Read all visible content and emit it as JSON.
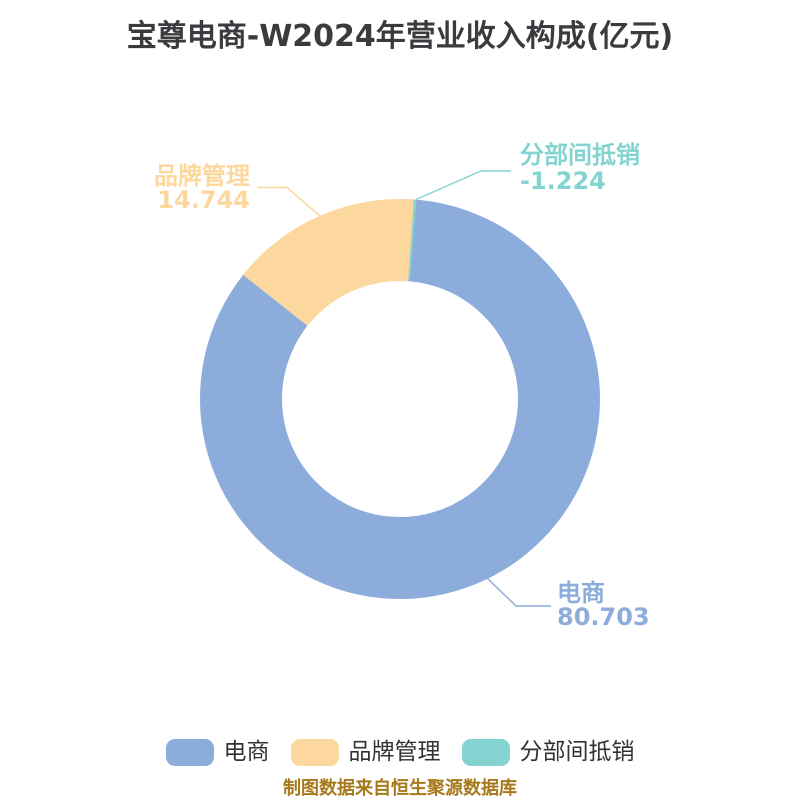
{
  "colors": {
    "title": "#3B3B3F",
    "legend_text": "#333333",
    "footer": "#A6791B",
    "background": "#FFFFFF"
  },
  "footer": "制图数据来自恒生聚源数据库",
  "chart_data": {
    "type": "pie",
    "subtype": "donut",
    "title": "宝尊电商-W2024年营业收入构成(亿元)",
    "unit": "亿元",
    "categories": [
      "电商",
      "品牌管理",
      "分部间抵销"
    ],
    "values": [
      80.703,
      14.744,
      -1.224
    ],
    "value_labels": [
      "80.703",
      "14.744",
      "-1.224"
    ],
    "colors": [
      "#8CACDC",
      "#FCD79E",
      "#83D4D0"
    ],
    "legend_position": "bottom",
    "inner_radius_ratio": 0.59,
    "start_angle_deg": 0,
    "direction": "clockwise",
    "labels_outside_with_leader_lines": true
  }
}
